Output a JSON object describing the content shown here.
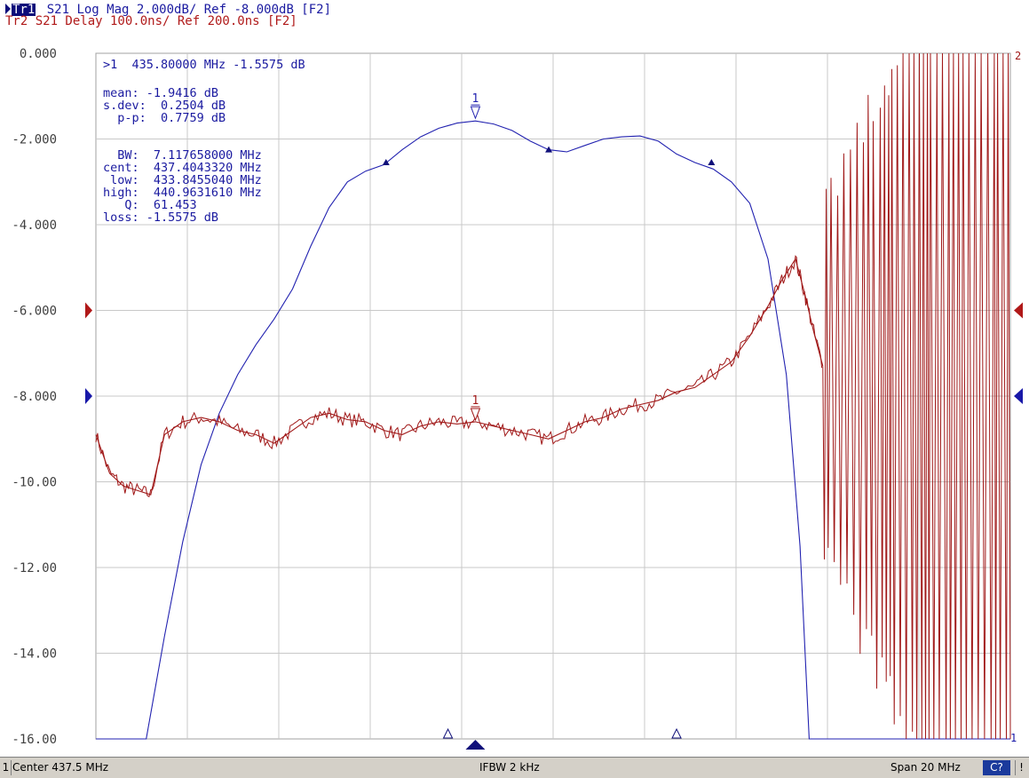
{
  "header": {
    "trace1_tag": "Tr1",
    "trace1_text": " S21 Log Mag 2.000dB/ Ref -8.000dB [F2]",
    "trace2_text": "Tr2 S21 Delay 100.0ns/ Ref 200.0ns [F2]"
  },
  "marker_readout": {
    "active": ">1  435.80000 MHz -1.5575 dB",
    "stats": [
      "mean: -1.9416 dB",
      "s.dev:  0.2504 dB",
      "  p-p:  0.7759 dB"
    ],
    "bw": [
      "  BW:  7.117658000 MHz",
      "cent:  437.4043320 MHz",
      " low:  433.8455040 MHz",
      "high:  440.9631610 MHz",
      "   Q:  61.453",
      "loss: -1.5575 dB"
    ]
  },
  "status": {
    "channel": "1",
    "center": "Center 437.5 MHz",
    "ifbw": "IFBW 2 kHz",
    "span": "Span 20 MHz",
    "cal": "C?",
    "warn": "!"
  },
  "colors": {
    "trace1": "#2222b0",
    "trace2": "#a01818",
    "grid": "#c8c8c8",
    "text1": "#1a1aa0"
  },
  "chart_data": {
    "type": "line",
    "xlim": [
      427.5,
      447.5
    ],
    "ylim": [
      -16,
      0
    ],
    "yticks": [
      0,
      -2,
      -4,
      -6,
      -8,
      -10,
      -12,
      -14,
      -16
    ],
    "ytick_labels": [
      "0.000",
      "-2.000",
      "-4.000",
      "-6.000",
      "-8.000",
      "-10.00",
      "-12.00",
      "-14.00",
      "-16.00"
    ],
    "reference_level": -8,
    "channel_number_right": "2",
    "channel_number_right_bottom": "1",
    "series": [
      {
        "key": "trace1",
        "x": [
          427.5,
          428.6,
          429.0,
          429.4,
          429.8,
          430.2,
          430.6,
          431.0,
          431.4,
          431.8,
          432.2,
          432.6,
          433.0,
          433.4,
          433.8,
          434.2,
          434.6,
          435.0,
          435.4,
          435.8,
          436.2,
          436.6,
          437.0,
          437.4,
          437.8,
          438.2,
          438.6,
          439.0,
          439.4,
          439.8,
          440.2,
          440.6,
          441.0,
          441.4,
          441.8,
          442.2,
          442.6,
          442.9,
          443.1,
          447.5
        ],
        "y": [
          -16,
          -16,
          -13.6,
          -11.4,
          -9.6,
          -8.4,
          -7.5,
          -6.8,
          -6.2,
          -5.5,
          -4.5,
          -3.6,
          -3.0,
          -2.75,
          -2.6,
          -2.25,
          -1.95,
          -1.75,
          -1.63,
          -1.58,
          -1.65,
          -1.8,
          -2.05,
          -2.25,
          -2.3,
          -2.15,
          -2.0,
          -1.95,
          -1.93,
          -2.05,
          -2.35,
          -2.55,
          -2.7,
          -3.0,
          -3.5,
          -4.8,
          -7.5,
          -11.5,
          -16,
          -16
        ]
      },
      {
        "key": "trace2",
        "x": [
          427.5,
          427.8,
          428.1,
          428.4,
          428.7,
          429.0,
          429.4,
          429.8,
          430.2,
          430.6,
          431.0,
          431.4,
          431.8,
          432.2,
          432.6,
          433.0,
          433.4,
          433.8,
          434.2,
          434.6,
          435.0,
          435.4,
          435.8,
          436.2,
          436.6,
          437.0,
          437.4,
          437.8,
          438.2,
          438.6,
          439.0,
          439.4,
          439.8,
          440.2,
          440.6,
          441.0,
          441.4,
          441.8,
          442.2,
          442.5,
          442.8,
          443.0,
          443.2,
          443.4
        ],
        "y": [
          -8.9,
          -9.8,
          -10.1,
          -10.2,
          -10.3,
          -8.9,
          -8.6,
          -8.5,
          -8.6,
          -8.8,
          -8.9,
          -9.1,
          -8.8,
          -8.5,
          -8.4,
          -8.55,
          -8.6,
          -8.8,
          -8.9,
          -8.7,
          -8.6,
          -8.65,
          -8.6,
          -8.7,
          -8.8,
          -8.9,
          -9.0,
          -8.8,
          -8.6,
          -8.5,
          -8.3,
          -8.2,
          -8.1,
          -7.9,
          -7.8,
          -7.5,
          -7.2,
          -6.6,
          -5.9,
          -5.3,
          -4.8,
          -5.6,
          -6.5,
          -7.3
        ]
      }
    ],
    "trace2_noise": {
      "x_start": 443.4,
      "x_end": 447.5,
      "ymin": -16,
      "ymax": 0
    },
    "markers": [
      {
        "label": "1",
        "x": 435.8,
        "y": -1.5575,
        "series": "trace1"
      },
      {
        "label": "1",
        "x": 435.8,
        "y": -8.6,
        "series": "trace2"
      }
    ],
    "bw_markers": [
      {
        "x": 433.8455,
        "y": -2.55
      },
      {
        "x": 437.4043,
        "y": -2.25
      },
      {
        "x": 440.9632,
        "y": -2.55
      }
    ],
    "stimulus_markers": [
      {
        "x": 435.2
      },
      {
        "x": 440.2
      }
    ],
    "active_stimulus_marker": {
      "x": 435.8
    }
  }
}
